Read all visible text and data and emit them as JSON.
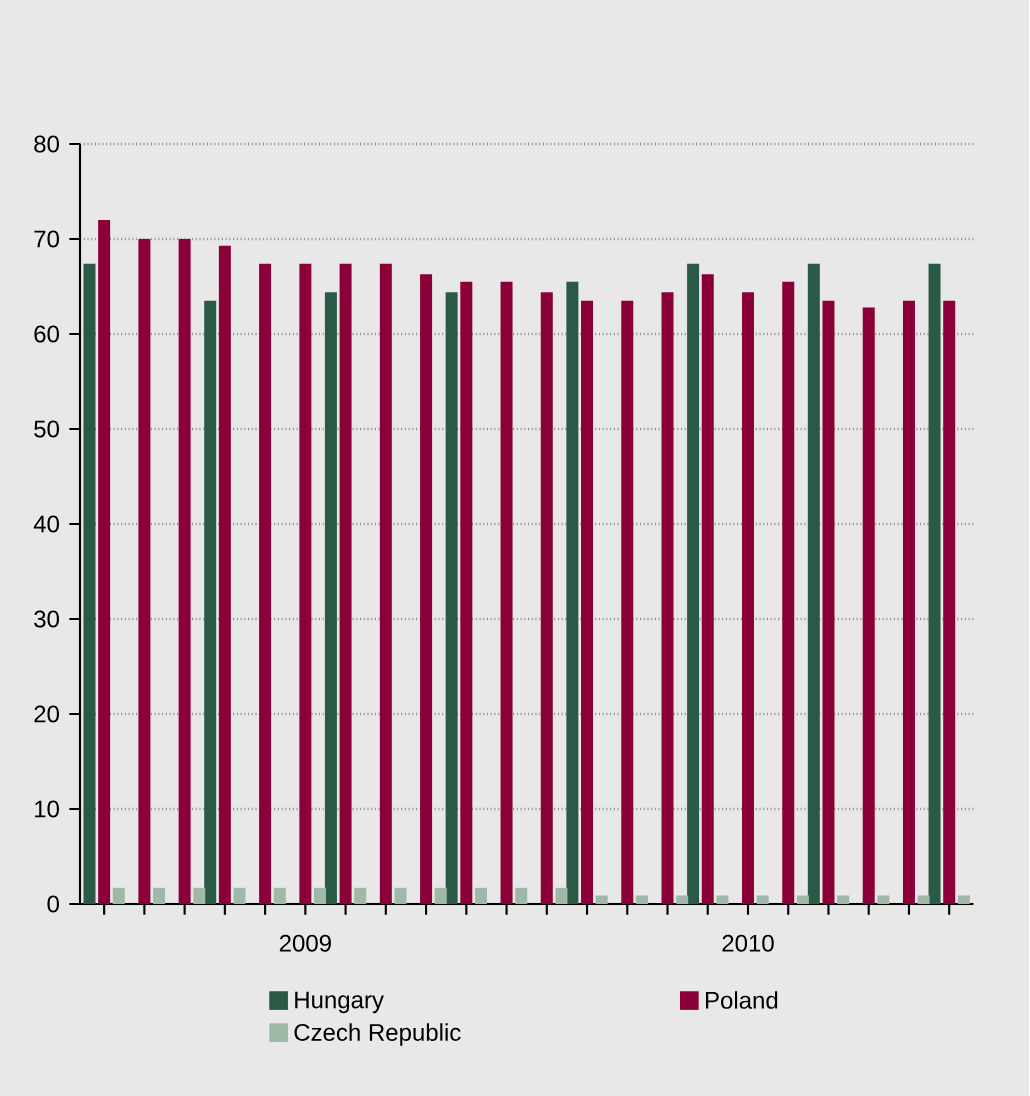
{
  "chart_data": {
    "type": "bar",
    "categories": [
      null,
      null,
      null,
      null,
      null,
      null,
      null,
      null,
      null,
      null,
      null,
      null,
      null,
      null,
      null,
      null,
      null,
      null,
      null,
      null,
      null,
      null
    ],
    "series": [
      {
        "name": "Hungary",
        "color": "#2a5a45",
        "values": [
          67.4,
          null,
          null,
          63.5,
          null,
          null,
          64.4,
          null,
          null,
          64.4,
          null,
          null,
          65.5,
          null,
          null,
          67.4,
          null,
          null,
          67.4,
          null,
          null,
          67.4
        ]
      },
      {
        "name": "Poland",
        "color": "#8b0039",
        "values": [
          72,
          70,
          70,
          69.3,
          67.4,
          67.4,
          67.4,
          67.4,
          66.3,
          65.5,
          65.5,
          64.4,
          63.5,
          63.5,
          64.4,
          66.3,
          64.4,
          65.5,
          63.5,
          62.8,
          63.5,
          63.5
        ]
      },
      {
        "name": "Czech Republic",
        "color": "#a0b8a8",
        "values": [
          1.7,
          1.7,
          1.7,
          1.7,
          1.7,
          1.7,
          1.7,
          1.7,
          1.7,
          1.7,
          1.7,
          1.7,
          0.9,
          0.9,
          0.9,
          0.9,
          0.9,
          0.9,
          0.9,
          0.9,
          0.9,
          0.9
        ]
      }
    ],
    "ylim": [
      0,
      80
    ],
    "yticks": [
      0,
      10,
      20,
      30,
      40,
      50,
      60,
      70,
      80
    ],
    "grid": "y",
    "legend": "bottom",
    "tick_labels": "y",
    "annotations": [
      "2009",
      "2010"
    ]
  }
}
